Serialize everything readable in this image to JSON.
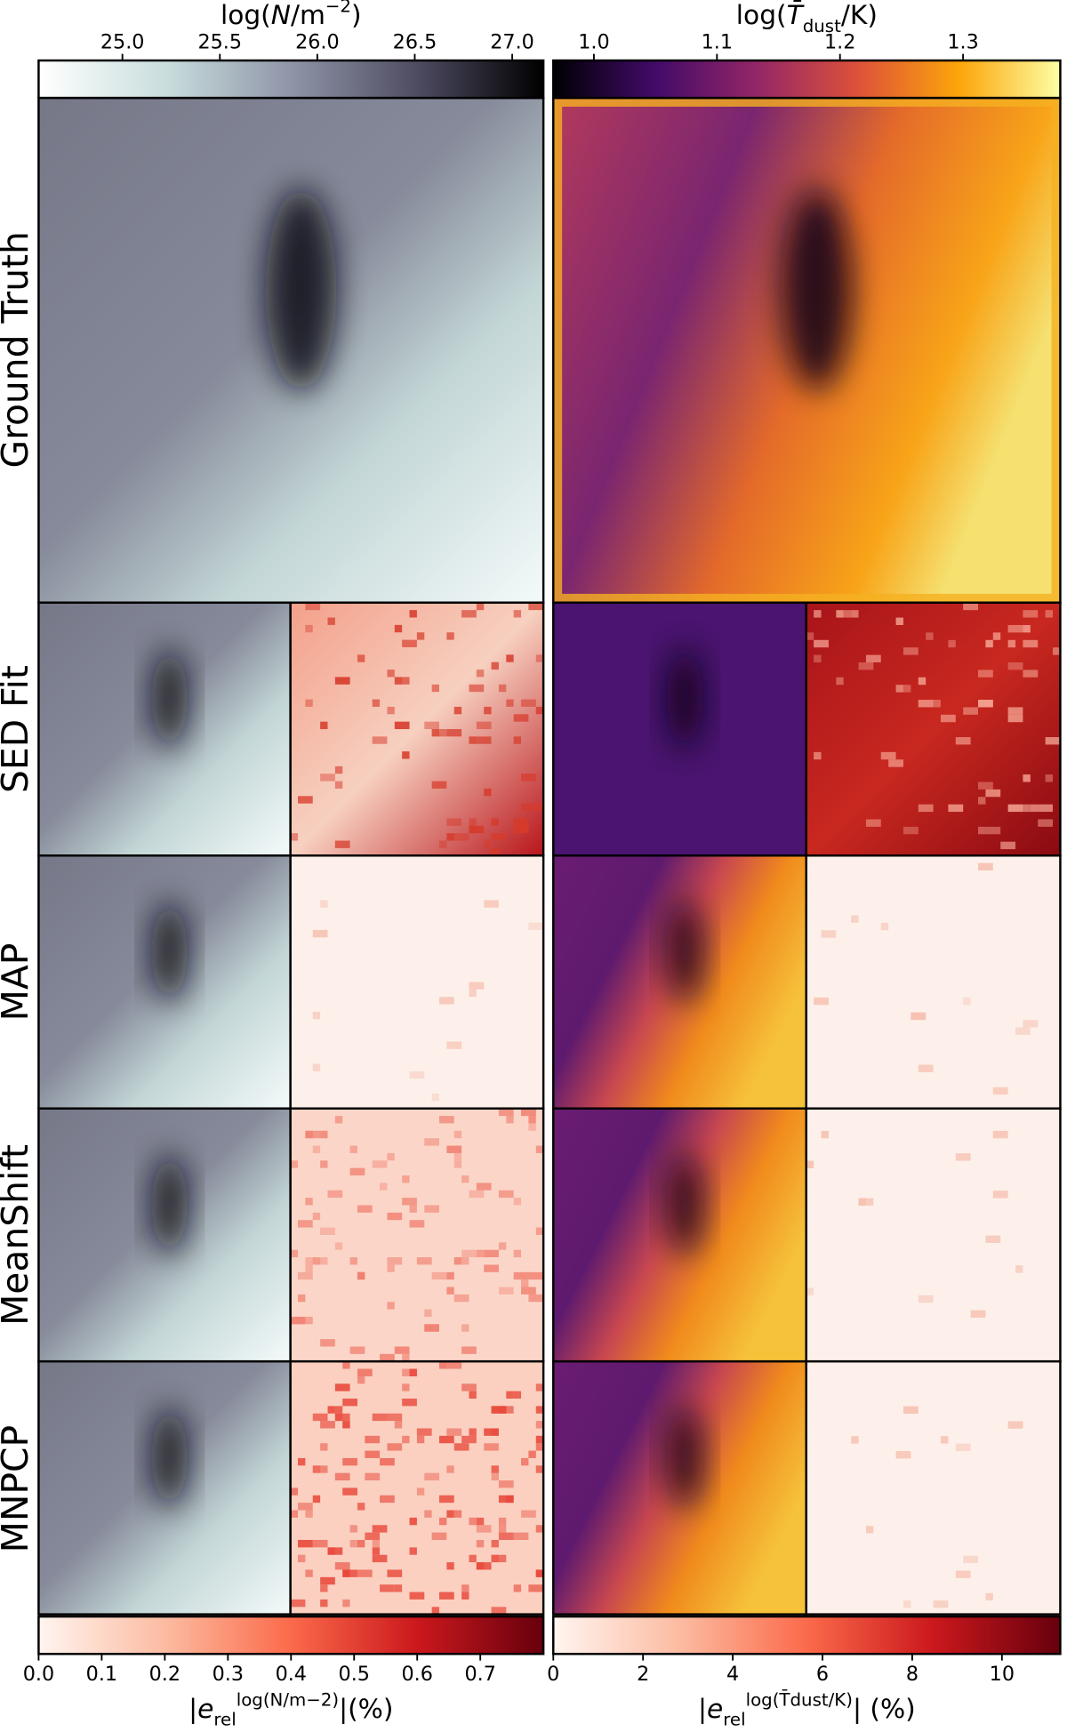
{
  "chart_data": [
    {
      "type": "colorbar",
      "position": "top-left",
      "label": [
        {
          "text": "log("
        },
        {
          "text": "N",
          "style": "italic"
        },
        {
          "text": "/m"
        },
        {
          "text": "−2",
          "style": "sup"
        },
        {
          "text": ")"
        }
      ],
      "xlim": [
        24.57,
        27.16
      ],
      "xticks": [
        {
          "value": 25,
          "label": "25.0"
        },
        25.5,
        {
          "value": 26,
          "label": "26.0"
        },
        26.5,
        {
          "value": 27,
          "label": "27.0"
        }
      ],
      "colors": [
        "#ffffff",
        "#c9dedd",
        "#8f95a8",
        "#4e4c62",
        "#000000"
      ]
    },
    {
      "type": "colorbar",
      "position": "top-right",
      "label": [
        {
          "text": "log("
        },
        {
          "text": "T̄",
          "style": "italic"
        },
        {
          "text": "dust",
          "style": "sub"
        },
        {
          "text": "/K)"
        }
      ],
      "xlim": [
        0.967,
        1.379
      ],
      "xticks": [
        {
          "value": 1,
          "label": "1.0"
        },
        1.1,
        1.2,
        1.3
      ],
      "colors": [
        "#000004",
        "#420a68",
        "#932667",
        "#dd513a",
        "#fca50a",
        "#fcffa4"
      ]
    },
    {
      "type": "colorbar",
      "position": "bottom-left",
      "label": [
        {
          "text": "|"
        },
        {
          "text": "e",
          "style": "italic"
        },
        {
          "text": "rel",
          "style": "sub"
        },
        {
          "text": "log(N/m−2)",
          "style": "sup"
        },
        {
          "text": "|(%)"
        }
      ],
      "xlim": [
        0,
        0.8
      ],
      "xticks": [
        {
          "value": 0,
          "label": "0.0"
        },
        0.1,
        0.2,
        0.3,
        0.4,
        0.5,
        0.6,
        0.7
      ],
      "colors": [
        "#fff5f0",
        "#fcbba1",
        "#fb6a4a",
        "#cb181d",
        "#67000d"
      ]
    },
    {
      "type": "colorbar",
      "position": "bottom-right",
      "label": [
        {
          "text": "|"
        },
        {
          "text": "e",
          "style": "italic"
        },
        {
          "text": "rel",
          "style": "sub"
        },
        {
          "text": "log(T̄dust/K)",
          "style": "sup"
        },
        {
          "text": "| (%)"
        }
      ],
      "xlim": [
        0,
        11.3
      ],
      "xticks": [
        0,
        2,
        4,
        6,
        8,
        10
      ],
      "colors": [
        "#fff5f0",
        "#fcbba1",
        "#fb6a4a",
        "#cb181d",
        "#67000d"
      ]
    }
  ],
  "row_labels": [
    "Ground Truth",
    "SED Fit",
    "MAP",
    "MeanShift",
    "MNPCP"
  ]
}
